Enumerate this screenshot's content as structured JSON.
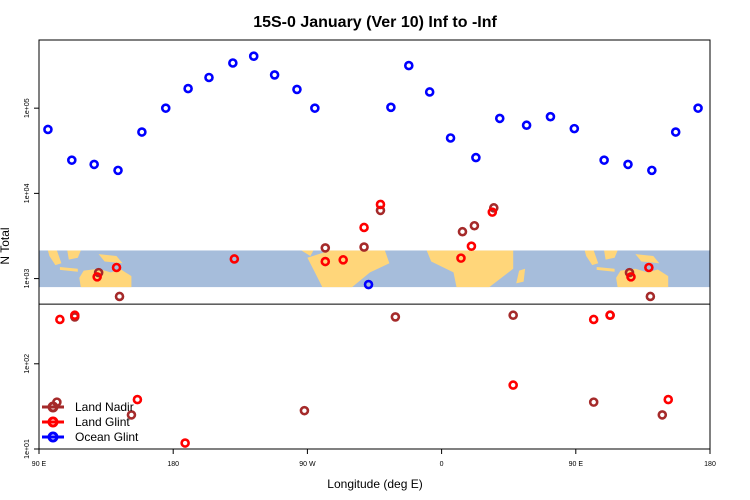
{
  "chart_data": {
    "type": "scatter",
    "title": "15S-0 January (Ver 10)   Inf to -Inf",
    "xlabel": "Longitude (deg E)",
    "ylabel": "N Total",
    "x_ticks": [
      {
        "value": 0,
        "label": "90 E"
      },
      {
        "value": 90,
        "label": "180"
      },
      {
        "value": 180,
        "label": "90 W"
      },
      {
        "value": 270,
        "label": "0"
      },
      {
        "value": 360,
        "label": "90 E"
      },
      {
        "value": 450,
        "label": "180"
      }
    ],
    "xlim": [
      0,
      450
    ],
    "ylim_log10": [
      1.0,
      5.8
    ],
    "y_ticks": [
      {
        "log10": 1,
        "label": "1e+01"
      },
      {
        "log10": 2,
        "label": "1e+02"
      },
      {
        "log10": 3,
        "label": "1e+03"
      },
      {
        "log10": 4,
        "label": "1e+04"
      },
      {
        "log10": 5,
        "label": "1e+05"
      }
    ],
    "map_band_log10": [
      2.9,
      3.33
    ],
    "divider_log10": 2.7,
    "legend": {
      "position": "bottom-left"
    },
    "series": [
      {
        "name": "Land Nadir",
        "color": "#a52a2a",
        "points": [
          [
            12,
            1.55
          ],
          [
            24,
            2.55
          ],
          [
            40,
            3.07
          ],
          [
            54,
            2.79
          ],
          [
            62,
            1.4
          ],
          [
            178,
            1.45
          ],
          [
            192,
            3.36
          ],
          [
            218,
            3.37
          ],
          [
            229,
            3.8
          ],
          [
            239,
            2.55
          ],
          [
            284,
            3.55
          ],
          [
            292,
            3.62
          ],
          [
            305,
            3.83
          ],
          [
            318,
            2.57
          ],
          [
            372,
            1.55
          ],
          [
            383,
            2.57
          ],
          [
            396,
            3.07
          ],
          [
            410,
            2.79
          ],
          [
            418,
            1.4
          ]
        ]
      },
      {
        "name": "Land Glint",
        "color": "#ff0000",
        "points": [
          [
            14,
            2.52
          ],
          [
            24,
            2.57
          ],
          [
            39,
            3.02
          ],
          [
            52,
            3.13
          ],
          [
            66,
            1.58
          ],
          [
            98,
            1.07
          ],
          [
            131,
            3.23
          ],
          [
            192,
            3.2
          ],
          [
            204,
            3.22
          ],
          [
            218,
            3.6
          ],
          [
            229,
            3.87
          ],
          [
            283,
            3.24
          ],
          [
            290,
            3.38
          ],
          [
            304,
            3.78
          ],
          [
            318,
            1.75
          ],
          [
            372,
            2.52
          ],
          [
            383,
            2.57
          ],
          [
            397,
            3.02
          ],
          [
            409,
            3.13
          ],
          [
            422,
            1.58
          ]
        ]
      },
      {
        "name": "Ocean Glint",
        "color": "#0000ff",
        "points": [
          [
            6,
            4.75
          ],
          [
            22,
            4.39
          ],
          [
            37,
            4.34
          ],
          [
            53,
            4.27
          ],
          [
            69,
            4.72
          ],
          [
            85,
            5.0
          ],
          [
            100,
            5.23
          ],
          [
            114,
            5.36
          ],
          [
            130,
            5.53
          ],
          [
            144,
            5.61
          ],
          [
            158,
            5.39
          ],
          [
            173,
            5.22
          ],
          [
            185,
            5.0
          ],
          [
            221,
            2.93
          ],
          [
            236,
            5.01
          ],
          [
            248,
            5.5
          ],
          [
            262,
            5.19
          ],
          [
            276,
            4.65
          ],
          [
            293,
            4.42
          ],
          [
            309,
            4.88
          ],
          [
            327,
            4.8
          ],
          [
            343,
            4.9
          ],
          [
            359,
            4.76
          ],
          [
            379,
            4.39
          ],
          [
            395,
            4.34
          ],
          [
            411,
            4.27
          ],
          [
            427,
            4.72
          ],
          [
            442,
            5.0
          ]
        ]
      }
    ]
  }
}
